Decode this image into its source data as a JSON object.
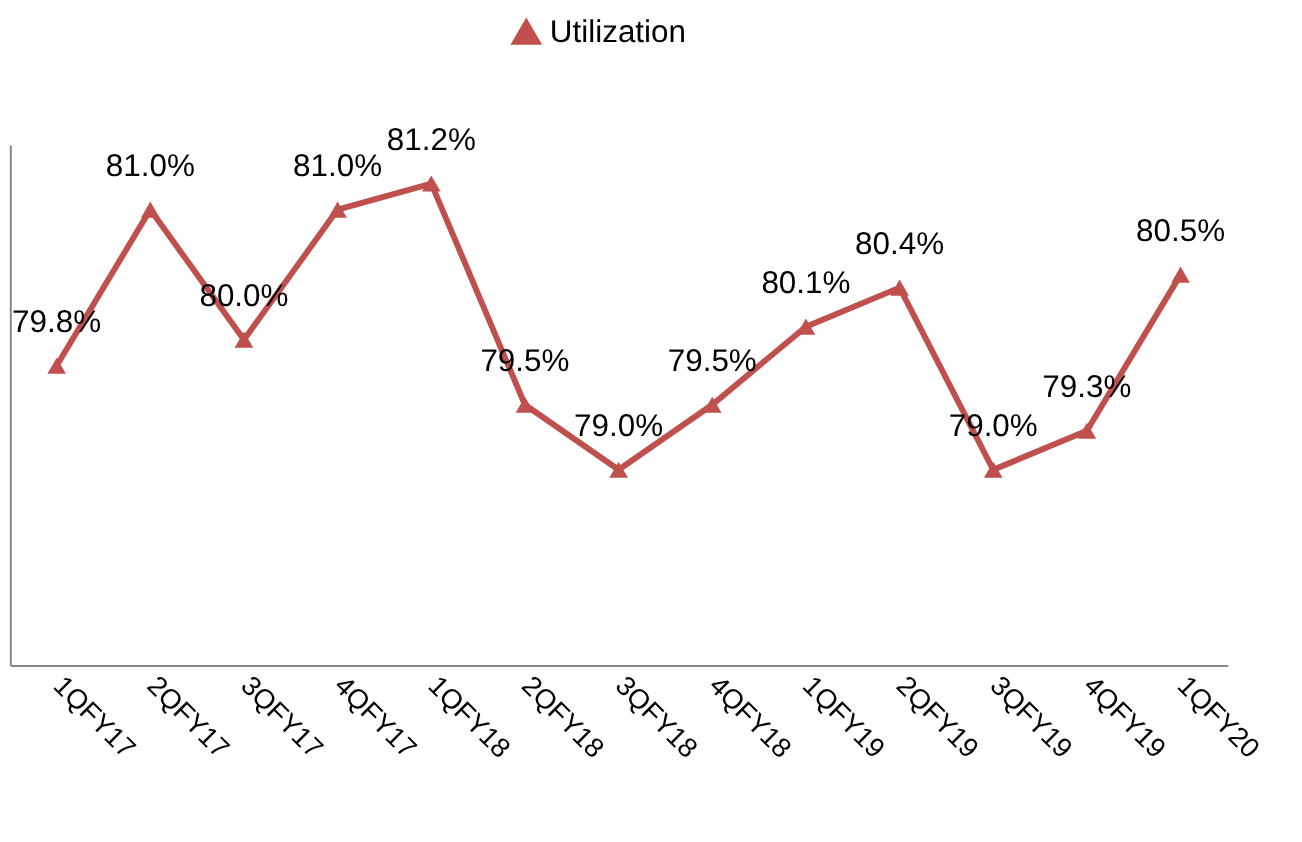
{
  "chart_data": {
    "type": "line",
    "categories": [
      "1QFY17",
      "2QFY17",
      "3QFY17",
      "4QFY17",
      "1QFY18",
      "2QFY18",
      "3QFY18",
      "4QFY18",
      "1QFY19",
      "2QFY19",
      "3QFY19",
      "4QFY19",
      "1QFY20"
    ],
    "series": [
      {
        "name": "Utilization",
        "color": "#c0504d",
        "values": [
          79.8,
          81.0,
          80.0,
          81.0,
          81.2,
          79.5,
          79.0,
          79.5,
          80.1,
          80.4,
          79.0,
          79.3,
          80.5
        ],
        "value_labels": [
          "79.8%",
          "81.0%",
          "80.0%",
          "81.0%",
          "81.2%",
          "79.5%",
          "79.0%",
          "79.5%",
          "80.1%",
          "80.4%",
          "79.0%",
          "79.3%",
          "80.5%"
        ]
      }
    ],
    "ylim": [
      77.5,
      81.5
    ],
    "marker": "triangle",
    "line_style": "solid",
    "legend": "top",
    "grid": false
  }
}
